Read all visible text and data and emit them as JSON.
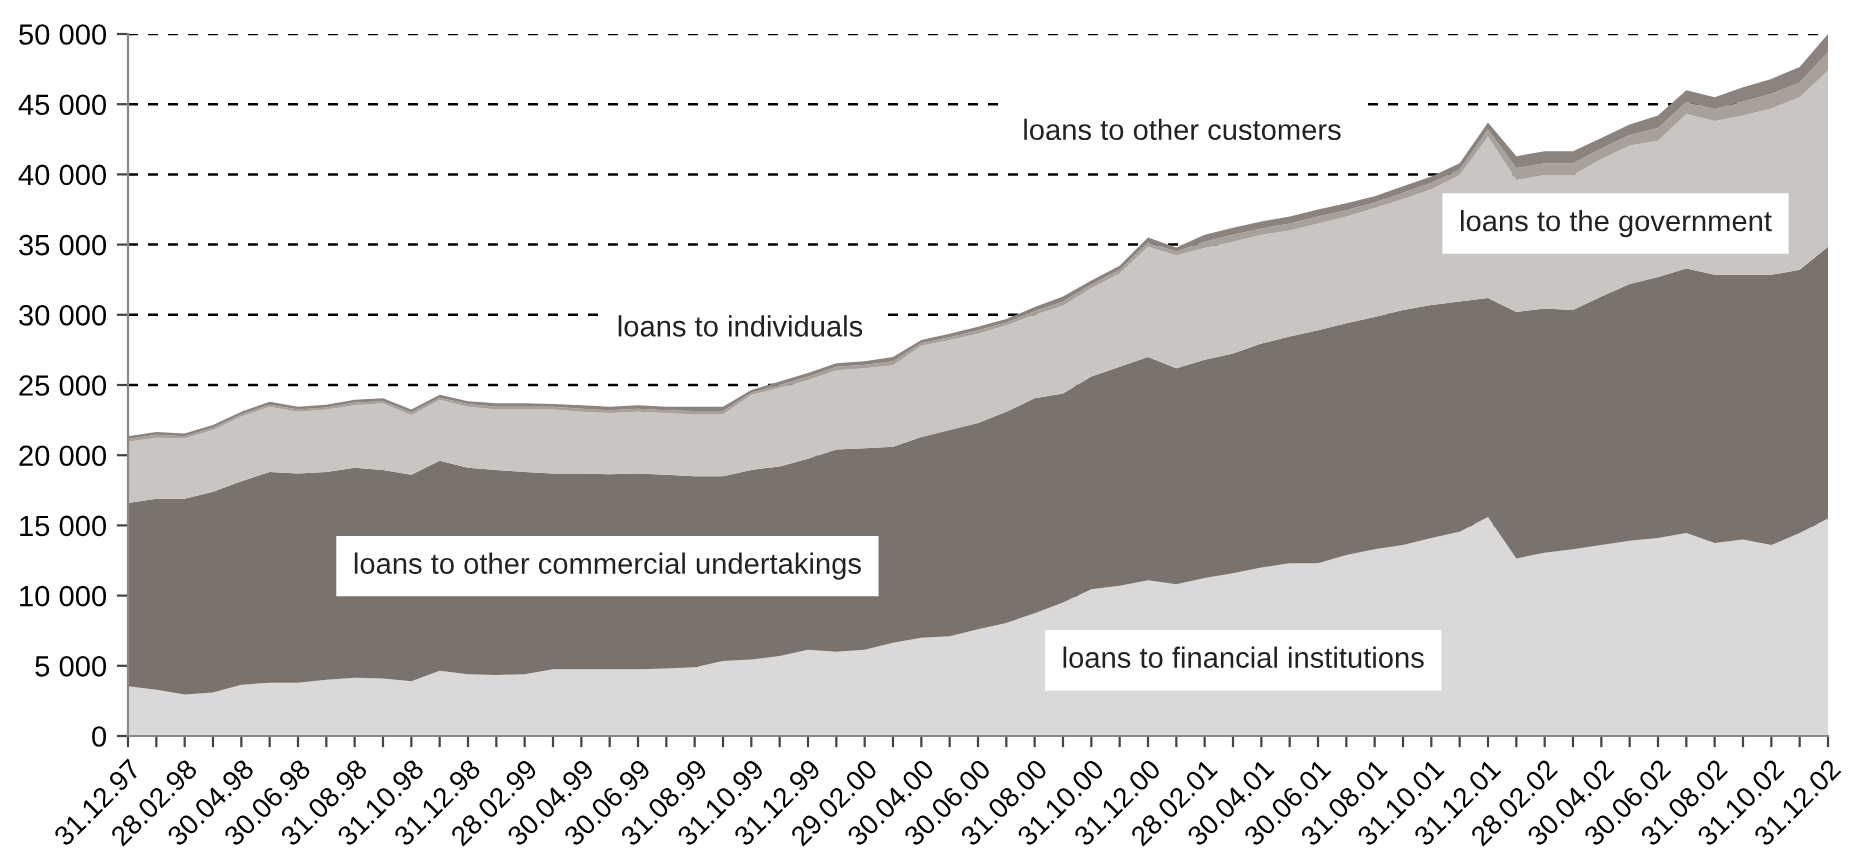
{
  "chart_data": {
    "type": "area",
    "stacked": true,
    "categories": [
      "31.12.97",
      null,
      "28.02.98",
      null,
      "30.04.98",
      null,
      "30.06.98",
      null,
      "31.08.98",
      null,
      "31.10.98",
      null,
      "31.12.98",
      null,
      "28.02.99",
      null,
      "30.04.99",
      null,
      "30.06.99",
      null,
      "31.08.99",
      null,
      "31.10.99",
      null,
      "31.12.99",
      null,
      "29.02.00",
      null,
      "30.04.00",
      null,
      "30.06.00",
      null,
      "31.08.00",
      null,
      "31.10.00",
      null,
      "31.12.00",
      null,
      "28.02.01",
      null,
      "30.04.01",
      null,
      "30.06.01",
      null,
      "31.08.01",
      null,
      "31.10.01",
      null,
      "31.12.01",
      null,
      "28.02.02",
      null,
      "30.04.02",
      null,
      "30.06.02",
      null,
      "31.08.02",
      null,
      "31.10.02",
      null,
      "31.12.02"
    ],
    "series": [
      {
        "name": "loans to financial institutions",
        "color": "#dad9d7",
        "values": [
          3550,
          3300,
          2950,
          3100,
          3650,
          3800,
          3800,
          4000,
          4150,
          4100,
          3900,
          4650,
          4400,
          4350,
          4400,
          4750,
          4750,
          4750,
          4750,
          4800,
          4900,
          5350,
          5450,
          5700,
          6150,
          6000,
          6150,
          6650,
          7000,
          7100,
          7600,
          8050,
          8750,
          9500,
          10450,
          10700,
          11100,
          10800,
          11250,
          11600,
          12000,
          12300,
          12300,
          12900,
          13300,
          13600,
          14100,
          14550,
          15600,
          12650,
          13050,
          13300,
          13600,
          13900,
          14100,
          14450,
          13750,
          14000,
          13600,
          14450,
          15500
        ]
      },
      {
        "name": "loans to other commercial undertakings",
        "color": "#7a726d",
        "values": [
          13050,
          13600,
          13950,
          14300,
          14500,
          15000,
          14900,
          14800,
          14950,
          14850,
          14700,
          14950,
          14700,
          14600,
          14400,
          13950,
          13950,
          13900,
          13950,
          13800,
          13600,
          13150,
          13500,
          13500,
          13600,
          14400,
          14350,
          13950,
          14300,
          14700,
          14700,
          15050,
          15300,
          14900,
          15150,
          15600,
          15900,
          15400,
          15550,
          15650,
          15950,
          16150,
          16600,
          16500,
          16550,
          16750,
          16600,
          16400,
          15600,
          17550,
          17400,
          17050,
          17700,
          18300,
          18600,
          18850,
          19100,
          18850,
          19250,
          18750,
          19350
        ]
      },
      {
        "name": "loans to individuals",
        "color": "#c9c5c1",
        "values": [
          4350,
          4350,
          4300,
          4400,
          4600,
          4650,
          4400,
          4450,
          4450,
          4750,
          4250,
          4350,
          4350,
          4300,
          4450,
          4550,
          4400,
          4350,
          4400,
          4400,
          4400,
          4400,
          5350,
          5600,
          5600,
          5650,
          5700,
          5800,
          6500,
          6400,
          6350,
          6150,
          5950,
          6250,
          6300,
          6650,
          7850,
          8050,
          7950,
          7950,
          7750,
          7550,
          7600,
          7600,
          7750,
          7900,
          8250,
          9000,
          11500,
          9400,
          9500,
          9600,
          9800,
          9850,
          9700,
          11000,
          10950,
          11350,
          11850,
          12300,
          12550
        ]
      },
      {
        "name": "loans to the government",
        "color": "#a8a09b",
        "values": [
          200,
          200,
          150,
          150,
          150,
          150,
          150,
          150,
          200,
          150,
          200,
          150,
          200,
          200,
          200,
          200,
          200,
          200,
          200,
          200,
          250,
          250,
          150,
          200,
          250,
          250,
          250,
          300,
          200,
          200,
          250,
          200,
          250,
          300,
          250,
          250,
          300,
          250,
          450,
          500,
          450,
          500,
          500,
          450,
          400,
          450,
          450,
          400,
          500,
          850,
          850,
          850,
          750,
          750,
          900,
          850,
          850,
          1000,
          1050,
          1050,
          1300
        ]
      },
      {
        "name": "loans to other customers",
        "color": "#8c837e",
        "values": [
          200,
          200,
          200,
          200,
          200,
          200,
          200,
          200,
          200,
          200,
          200,
          200,
          200,
          250,
          250,
          200,
          250,
          250,
          250,
          250,
          300,
          300,
          200,
          250,
          250,
          250,
          250,
          300,
          200,
          250,
          250,
          250,
          300,
          350,
          300,
          300,
          350,
          300,
          500,
          500,
          500,
          500,
          500,
          500,
          450,
          450,
          450,
          450,
          500,
          850,
          850,
          850,
          750,
          750,
          900,
          850,
          850,
          1000,
          1050,
          1100,
          1300
        ]
      }
    ],
    "ylim": [
      0,
      50000
    ],
    "yticks": [
      0,
      {
        "value": 5000,
        "label": "5 000"
      },
      {
        "value": 10000,
        "label": "10 000"
      },
      {
        "value": 15000,
        "label": "15 000"
      },
      {
        "value": 20000,
        "label": "20 000"
      },
      {
        "value": 25000,
        "label": "25 000"
      },
      {
        "value": 30000,
        "label": "30 000"
      },
      {
        "value": 35000,
        "label": "35 000"
      },
      {
        "value": 40000,
        "label": "40 000"
      },
      {
        "value": 45000,
        "label": "45 000"
      },
      {
        "value": 50000,
        "label": "50 000"
      }
    ],
    "grid": "y",
    "line_style": "dashed",
    "legend": false
  }
}
